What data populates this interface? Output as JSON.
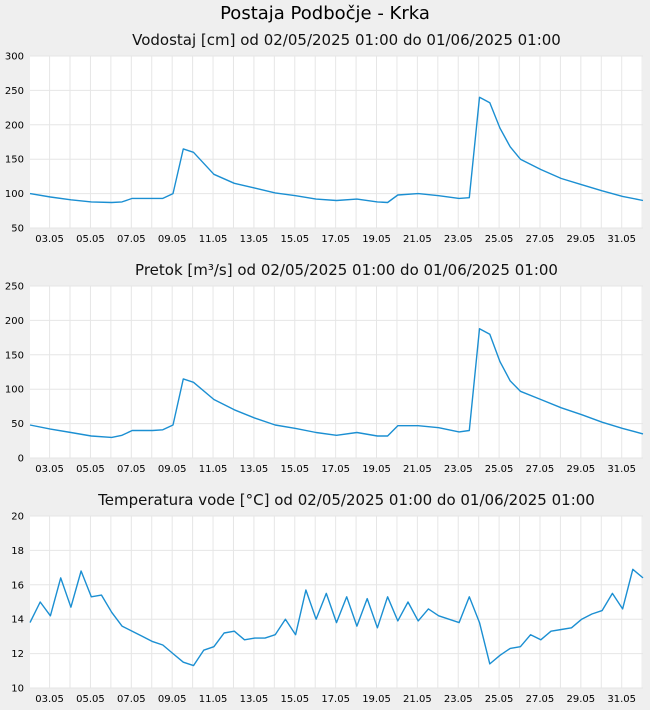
{
  "page": {
    "title": "Postaja Podbočje - Krka"
  },
  "colors": {
    "line": "#1b8fd2",
    "grid": "#e6e6e6",
    "background": "#efefef",
    "plot": "#ffffff"
  },
  "x_ticks": [
    "03.05",
    "05.05",
    "07.05",
    "09.05",
    "11.05",
    "13.05",
    "15.05",
    "17.05",
    "19.05",
    "21.05",
    "23.05",
    "25.05",
    "27.05",
    "29.05",
    "31.05"
  ],
  "chart_data": [
    {
      "type": "line",
      "title": "Vodostaj [cm] od 02/05/2025 01:00 do 01/06/2025 01:00",
      "xlabel": "",
      "ylabel": "",
      "xlim": [
        "2025-05-02T01:00",
        "2025-06-01T01:00"
      ],
      "ylim": [
        50,
        300
      ],
      "yticks": [
        50,
        100,
        150,
        200,
        250,
        300
      ],
      "grid": true,
      "series": [
        {
          "x": [
            "2025-05-02T01:00",
            "2025-05-03T01:00",
            "2025-05-04T01:00",
            "2025-05-05T01:00",
            "2025-05-06T01:00",
            "2025-05-06T13:00",
            "2025-05-07T01:00",
            "2025-05-08T01:00",
            "2025-05-08T13:00",
            "2025-05-09T01:00",
            "2025-05-09T13:00",
            "2025-05-10T01:00",
            "2025-05-11T01:00",
            "2025-05-12T01:00",
            "2025-05-13T01:00",
            "2025-05-14T01:00",
            "2025-05-15T01:00",
            "2025-05-16T01:00",
            "2025-05-17T01:00",
            "2025-05-18T01:00",
            "2025-05-19T01:00",
            "2025-05-19T13:00",
            "2025-05-20T01:00",
            "2025-05-21T01:00",
            "2025-05-22T01:00",
            "2025-05-23T01:00",
            "2025-05-23T13:00",
            "2025-05-24T01:00",
            "2025-05-24T13:00",
            "2025-05-25T01:00",
            "2025-05-25T13:00",
            "2025-05-26T01:00",
            "2025-05-27T01:00",
            "2025-05-28T01:00",
            "2025-05-29T01:00",
            "2025-05-30T01:00",
            "2025-05-31T01:00",
            "2025-06-01T01:00"
          ],
          "y": [
            100,
            95,
            91,
            88,
            87,
            88,
            93,
            93,
            93,
            100,
            165,
            160,
            128,
            115,
            108,
            101,
            97,
            92,
            90,
            92,
            88,
            87,
            98,
            100,
            97,
            93,
            94,
            240,
            232,
            195,
            168,
            150,
            135,
            122,
            113,
            104,
            96,
            90
          ]
        }
      ]
    },
    {
      "type": "line",
      "title": "Pretok [m³/s] od 02/05/2025 01:00 do 01/06/2025 01:00",
      "xlabel": "",
      "ylabel": "",
      "xlim": [
        "2025-05-02T01:00",
        "2025-06-01T01:00"
      ],
      "ylim": [
        0,
        250
      ],
      "yticks": [
        0,
        50,
        100,
        150,
        200,
        250
      ],
      "grid": true,
      "series": [
        {
          "x": [
            "2025-05-02T01:00",
            "2025-05-03T01:00",
            "2025-05-04T01:00",
            "2025-05-05T01:00",
            "2025-05-06T01:00",
            "2025-05-06T13:00",
            "2025-05-07T01:00",
            "2025-05-08T01:00",
            "2025-05-08T13:00",
            "2025-05-09T01:00",
            "2025-05-09T13:00",
            "2025-05-10T01:00",
            "2025-05-11T01:00",
            "2025-05-12T01:00",
            "2025-05-13T01:00",
            "2025-05-14T01:00",
            "2025-05-15T01:00",
            "2025-05-16T01:00",
            "2025-05-17T01:00",
            "2025-05-18T01:00",
            "2025-05-19T01:00",
            "2025-05-19T13:00",
            "2025-05-20T01:00",
            "2025-05-21T01:00",
            "2025-05-22T01:00",
            "2025-05-23T01:00",
            "2025-05-23T13:00",
            "2025-05-24T01:00",
            "2025-05-24T13:00",
            "2025-05-25T01:00",
            "2025-05-25T13:00",
            "2025-05-26T01:00",
            "2025-05-27T01:00",
            "2025-05-28T01:00",
            "2025-05-29T01:00",
            "2025-05-30T01:00",
            "2025-05-31T01:00",
            "2025-06-01T01:00"
          ],
          "y": [
            48,
            42,
            37,
            32,
            30,
            33,
            40,
            40,
            41,
            48,
            115,
            110,
            85,
            70,
            58,
            48,
            43,
            37,
            33,
            37,
            32,
            32,
            47,
            47,
            44,
            38,
            40,
            188,
            180,
            140,
            112,
            97,
            85,
            73,
            63,
            52,
            43,
            35
          ]
        }
      ]
    },
    {
      "type": "line",
      "title": "Temperatura vode [°C] od 02/05/2025 01:00 do 01/06/2025 01:00",
      "xlabel": "",
      "ylabel": "",
      "xlim": [
        "2025-05-02T01:00",
        "2025-06-01T01:00"
      ],
      "ylim": [
        10,
        20
      ],
      "yticks": [
        10,
        12,
        14,
        16,
        18,
        20
      ],
      "grid": true,
      "series": [
        {
          "x": [
            "2025-05-02T01:00",
            "2025-05-02T13:00",
            "2025-05-03T01:00",
            "2025-05-03T13:00",
            "2025-05-04T01:00",
            "2025-05-04T13:00",
            "2025-05-05T01:00",
            "2025-05-05T13:00",
            "2025-05-06T01:00",
            "2025-05-06T13:00",
            "2025-05-07T01:00",
            "2025-05-07T13:00",
            "2025-05-08T01:00",
            "2025-05-08T13:00",
            "2025-05-09T01:00",
            "2025-05-09T13:00",
            "2025-05-10T01:00",
            "2025-05-10T13:00",
            "2025-05-11T01:00",
            "2025-05-11T13:00",
            "2025-05-12T01:00",
            "2025-05-12T13:00",
            "2025-05-13T01:00",
            "2025-05-13T13:00",
            "2025-05-14T01:00",
            "2025-05-14T13:00",
            "2025-05-15T01:00",
            "2025-05-15T13:00",
            "2025-05-16T01:00",
            "2025-05-16T13:00",
            "2025-05-17T01:00",
            "2025-05-17T13:00",
            "2025-05-18T01:00",
            "2025-05-18T13:00",
            "2025-05-19T01:00",
            "2025-05-19T13:00",
            "2025-05-20T01:00",
            "2025-05-20T13:00",
            "2025-05-21T01:00",
            "2025-05-21T13:00",
            "2025-05-22T01:00",
            "2025-05-22T13:00",
            "2025-05-23T01:00",
            "2025-05-23T13:00",
            "2025-05-24T01:00",
            "2025-05-24T13:00",
            "2025-05-25T01:00",
            "2025-05-25T13:00",
            "2025-05-26T01:00",
            "2025-05-26T13:00",
            "2025-05-27T01:00",
            "2025-05-27T13:00",
            "2025-05-28T01:00",
            "2025-05-28T13:00",
            "2025-05-29T01:00",
            "2025-05-29T13:00",
            "2025-05-30T01:00",
            "2025-05-30T13:00",
            "2025-05-31T01:00",
            "2025-05-31T13:00",
            "2025-06-01T01:00"
          ],
          "y": [
            13.8,
            15.0,
            14.2,
            16.4,
            14.7,
            16.8,
            15.3,
            15.4,
            14.4,
            13.6,
            13.3,
            13.0,
            12.7,
            12.5,
            12.0,
            11.5,
            11.3,
            12.2,
            12.4,
            13.2,
            13.3,
            12.8,
            12.9,
            12.9,
            13.1,
            14.0,
            13.1,
            15.7,
            14.0,
            15.5,
            13.8,
            15.3,
            13.6,
            15.2,
            13.5,
            15.3,
            13.9,
            15.0,
            13.9,
            14.6,
            14.2,
            14.0,
            13.8,
            15.3,
            13.8,
            11.4,
            11.9,
            12.3,
            12.4,
            13.1,
            12.8,
            13.3,
            13.4,
            13.5,
            14.0,
            14.3,
            14.5,
            15.5,
            14.6,
            16.9,
            16.4
          ]
        }
      ]
    }
  ]
}
